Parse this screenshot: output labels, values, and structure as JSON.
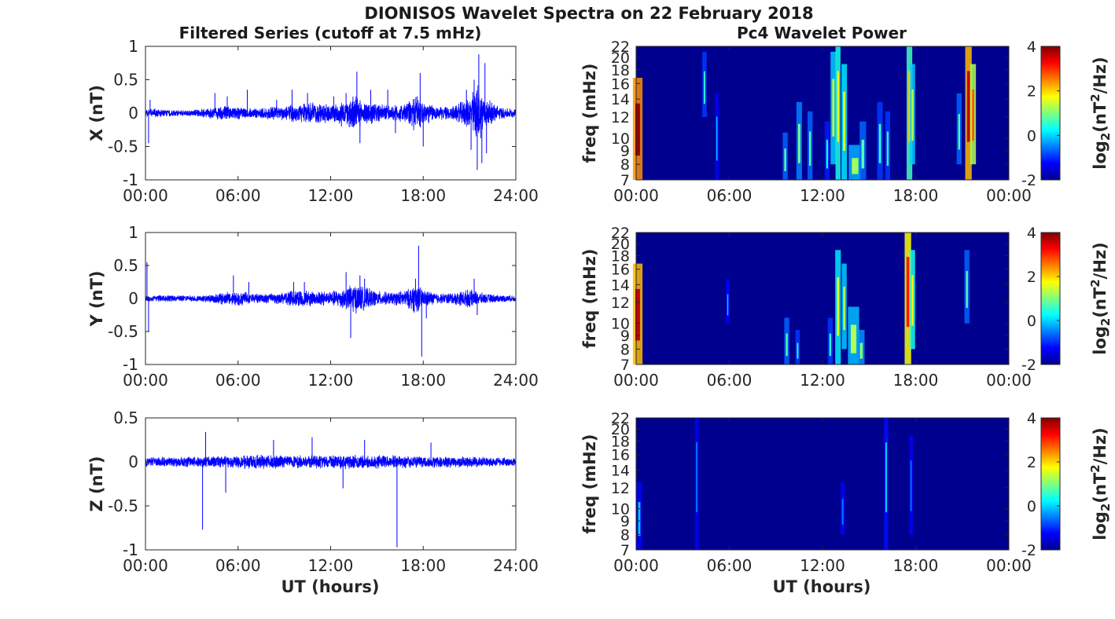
{
  "figure": {
    "title": "DIONISOS Wavelet Spectra on 22 February 2018",
    "left_column_title": "Filtered Series (cutoff at 7.5 mHz)",
    "right_column_title": "Pc4 Wavelet Power",
    "x_axis_label": "UT (hours)"
  },
  "colors": {
    "series_line": "#0000ff",
    "background_power": "#00008f",
    "colormap": "jet"
  },
  "chart_data": [
    {
      "type": "line",
      "panel": "X",
      "ylabel": "X (nT)",
      "ylim": [
        -1,
        1
      ],
      "yticks": [
        "1",
        "0.5",
        "0",
        "-0.5",
        "-1"
      ],
      "ytick_values": [
        1,
        0.5,
        0,
        -0.5,
        -1
      ],
      "xlim": [
        0,
        24
      ],
      "xticks": [
        "00:00",
        "06:00",
        "12:00",
        "18:00",
        "24:00"
      ],
      "envelope": [
        [
          0,
          0.05
        ],
        [
          0.5,
          0.08
        ],
        [
          1,
          0.06
        ],
        [
          2,
          0.05
        ],
        [
          3,
          0.05
        ],
        [
          4,
          0.08
        ],
        [
          5,
          0.12
        ],
        [
          6,
          0.1
        ],
        [
          7,
          0.08
        ],
        [
          8,
          0.1
        ],
        [
          9,
          0.12
        ],
        [
          10,
          0.15
        ],
        [
          11,
          0.18
        ],
        [
          12,
          0.15
        ],
        [
          13,
          0.2
        ],
        [
          13.5,
          0.3
        ],
        [
          14,
          0.2
        ],
        [
          15,
          0.15
        ],
        [
          16,
          0.12
        ],
        [
          17,
          0.18
        ],
        [
          17.5,
          0.3
        ],
        [
          18,
          0.2
        ],
        [
          19,
          0.1
        ],
        [
          20,
          0.12
        ],
        [
          21,
          0.25
        ],
        [
          21.5,
          0.5
        ],
        [
          22,
          0.25
        ],
        [
          23,
          0.1
        ],
        [
          24,
          0.06
        ]
      ],
      "spikes": [
        [
          0.2,
          -0.45
        ],
        [
          0.3,
          0.2
        ],
        [
          4.5,
          0.3
        ],
        [
          5.3,
          0.25
        ],
        [
          6.6,
          0.35
        ],
        [
          8.5,
          0.2
        ],
        [
          9.5,
          0.35
        ],
        [
          10.5,
          0.3
        ],
        [
          12.2,
          0.25
        ],
        [
          12.7,
          -0.2
        ],
        [
          13,
          0.3
        ],
        [
          13.2,
          -0.2
        ],
        [
          13.7,
          0.62
        ],
        [
          13.9,
          -0.45
        ],
        [
          14.6,
          0.35
        ],
        [
          15.7,
          0.35
        ],
        [
          16.2,
          -0.3
        ],
        [
          17.6,
          0.25
        ],
        [
          17.8,
          0.6
        ],
        [
          18,
          -0.5
        ],
        [
          20.8,
          0.35
        ],
        [
          21.1,
          -0.55
        ],
        [
          21.3,
          0.5
        ],
        [
          21.5,
          -0.85
        ],
        [
          21.6,
          0.88
        ],
        [
          21.8,
          -0.75
        ],
        [
          22,
          0.75
        ],
        [
          22.1,
          -0.6
        ]
      ]
    },
    {
      "type": "line",
      "panel": "Y",
      "ylabel": "Y (nT)",
      "ylim": [
        -1,
        1
      ],
      "yticks": [
        "1",
        "0.5",
        "0",
        "-0.5",
        "-1"
      ],
      "ytick_values": [
        1,
        0.5,
        0,
        -0.5,
        -1
      ],
      "xlim": [
        0,
        24
      ],
      "xticks": [
        "00:00",
        "06:00",
        "12:00",
        "18:00",
        "24:00"
      ],
      "envelope": [
        [
          0,
          0.05
        ],
        [
          1,
          0.06
        ],
        [
          2,
          0.05
        ],
        [
          3,
          0.05
        ],
        [
          4,
          0.06
        ],
        [
          5,
          0.1
        ],
        [
          6,
          0.12
        ],
        [
          7,
          0.08
        ],
        [
          8,
          0.08
        ],
        [
          9,
          0.1
        ],
        [
          10,
          0.15
        ],
        [
          11,
          0.12
        ],
        [
          12,
          0.12
        ],
        [
          13,
          0.18
        ],
        [
          13.5,
          0.25
        ],
        [
          14,
          0.2
        ],
        [
          15,
          0.12
        ],
        [
          16,
          0.1
        ],
        [
          17,
          0.15
        ],
        [
          17.5,
          0.25
        ],
        [
          18,
          0.15
        ],
        [
          19,
          0.08
        ],
        [
          20,
          0.1
        ],
        [
          21,
          0.15
        ],
        [
          22,
          0.08
        ],
        [
          23,
          0.06
        ],
        [
          24,
          0.05
        ]
      ],
      "spikes": [
        [
          0.1,
          0.55
        ],
        [
          0.2,
          -0.5
        ],
        [
          5.7,
          0.35
        ],
        [
          6.7,
          0.25
        ],
        [
          9.6,
          0.25
        ],
        [
          10.3,
          0.25
        ],
        [
          13,
          0.4
        ],
        [
          13.3,
          -0.6
        ],
        [
          13.9,
          0.35
        ],
        [
          14.2,
          0.3
        ],
        [
          17.5,
          0.3
        ],
        [
          17.7,
          0.8
        ],
        [
          17.9,
          -0.88
        ],
        [
          18.2,
          -0.3
        ],
        [
          21.3,
          0.3
        ],
        [
          21.5,
          -0.25
        ]
      ]
    },
    {
      "type": "line",
      "panel": "Z",
      "ylabel": "Z (nT)",
      "ylim": [
        -1,
        0.5
      ],
      "yticks": [
        "0.5",
        "0",
        "-0.5",
        "-1"
      ],
      "ytick_values": [
        0.5,
        0,
        -0.5,
        -1
      ],
      "xlim": [
        0,
        24
      ],
      "xticks": [
        "00:00",
        "06:00",
        "12:00",
        "18:00",
        "24:00"
      ],
      "envelope": [
        [
          0,
          0.06
        ],
        [
          2,
          0.06
        ],
        [
          4,
          0.07
        ],
        [
          6,
          0.08
        ],
        [
          8,
          0.09
        ],
        [
          10,
          0.08
        ],
        [
          12,
          0.08
        ],
        [
          14,
          0.09
        ],
        [
          16,
          0.08
        ],
        [
          18,
          0.07
        ],
        [
          20,
          0.07
        ],
        [
          22,
          0.06
        ],
        [
          24,
          0.05
        ]
      ],
      "spikes": [
        [
          3.7,
          -0.77
        ],
        [
          3.9,
          0.34
        ],
        [
          5.2,
          -0.35
        ],
        [
          8.3,
          0.25
        ],
        [
          10.8,
          0.28
        ],
        [
          12.8,
          -0.3
        ],
        [
          14.2,
          0.25
        ],
        [
          16.3,
          -0.97
        ],
        [
          18.5,
          0.22
        ]
      ]
    },
    {
      "type": "heatmap",
      "panel": "X",
      "ylabel": "freq (mHz)",
      "yticks": [
        "22",
        "20",
        "18",
        "16",
        "14",
        "12",
        "10",
        "9",
        "8",
        "7"
      ],
      "ytick_values": [
        22,
        20,
        18,
        16,
        14,
        12,
        10,
        9,
        8,
        7
      ],
      "ylim": [
        7,
        22
      ],
      "y_scale": "log",
      "xlim": [
        0,
        24
      ],
      "xticks": [
        "00:00",
        "06:00",
        "12:00",
        "18:00",
        "00:00"
      ],
      "colorbar_label": "log2(nT^2/Hz)",
      "colorbar_ticks": [
        "4",
        "2",
        "0",
        "-2"
      ],
      "clim": [
        -2,
        4
      ],
      "events": [
        [
          0.1,
          0.25,
          7,
          16,
          3.8
        ],
        [
          4.4,
          0.08,
          12,
          20,
          0.0
        ],
        [
          5.2,
          0.06,
          7,
          14,
          -0.5
        ],
        [
          9.6,
          0.1,
          7,
          10,
          0.3
        ],
        [
          10.5,
          0.12,
          7,
          13,
          0.5
        ],
        [
          11.2,
          0.1,
          7,
          12,
          0.3
        ],
        [
          12.3,
          0.1,
          7,
          11,
          -0.2
        ],
        [
          12.7,
          0.12,
          8,
          20,
          1.0
        ],
        [
          13,
          0.1,
          7,
          22,
          1.5
        ],
        [
          13.4,
          0.12,
          7,
          18,
          1.2
        ],
        [
          14.1,
          0.35,
          7,
          9,
          0.8
        ],
        [
          14.6,
          0.15,
          7,
          11,
          0.3
        ],
        [
          15.7,
          0.12,
          7,
          13,
          0.0
        ],
        [
          16.2,
          0.1,
          7,
          12,
          0.0
        ],
        [
          17.6,
          0.12,
          7,
          22,
          1.8
        ],
        [
          17.8,
          0.1,
          8,
          18,
          1.0
        ],
        [
          20.8,
          0.1,
          8,
          14,
          0.3
        ],
        [
          21.4,
          0.15,
          7,
          22,
          3.5
        ],
        [
          21.7,
          0.12,
          8,
          18,
          2.5
        ]
      ]
    },
    {
      "type": "heatmap",
      "panel": "Y",
      "ylabel": "freq (mHz)",
      "yticks": [
        "22",
        "20",
        "18",
        "16",
        "14",
        "12",
        "10",
        "9",
        "8",
        "7"
      ],
      "ytick_values": [
        22,
        20,
        18,
        16,
        14,
        12,
        10,
        9,
        8,
        7
      ],
      "ylim": [
        7,
        22
      ],
      "y_scale": "log",
      "xlim": [
        0,
        24
      ],
      "xticks": [
        "00:00",
        "06:00",
        "12:00",
        "18:00",
        "00:00"
      ],
      "colorbar_label": "log2(nT^2/Hz)",
      "colorbar_ticks": [
        "4",
        "2",
        "0",
        "-2"
      ],
      "clim": [
        -2,
        4
      ],
      "events": [
        [
          0.1,
          0.25,
          7,
          16,
          3.5
        ],
        [
          5.9,
          0.06,
          10,
          14,
          -0.5
        ],
        [
          9.7,
          0.1,
          7,
          10,
          0.3
        ],
        [
          10.4,
          0.08,
          7,
          9,
          0.0
        ],
        [
          12.5,
          0.1,
          7,
          10,
          0.0
        ],
        [
          13,
          0.12,
          7,
          18,
          1.2
        ],
        [
          13.4,
          0.1,
          8,
          16,
          1.0
        ],
        [
          14,
          0.3,
          7,
          11,
          0.9
        ],
        [
          14.5,
          0.15,
          7,
          9,
          0.6
        ],
        [
          17.5,
          0.15,
          7,
          22,
          3.0
        ],
        [
          17.8,
          0.1,
          8,
          18,
          1.5
        ],
        [
          21.3,
          0.1,
          10,
          18,
          0.3
        ]
      ]
    },
    {
      "type": "heatmap",
      "panel": "Z",
      "ylabel": "freq (mHz)",
      "yticks": [
        "22",
        "20",
        "18",
        "16",
        "14",
        "12",
        "10",
        "9",
        "8",
        "7"
      ],
      "ytick_values": [
        22,
        20,
        18,
        16,
        14,
        12,
        10,
        9,
        8,
        7
      ],
      "ylim": [
        7,
        22
      ],
      "y_scale": "log",
      "xlim": [
        0,
        24
      ],
      "xticks": [
        "00:00",
        "06:00",
        "12:00",
        "18:00",
        "00:00"
      ],
      "colorbar_label": "log2(nT^2/Hz)",
      "colorbar_ticks": [
        "4",
        "2",
        "0",
        "-2"
      ],
      "clim": [
        -2,
        4
      ],
      "events": [
        [
          0.2,
          0.12,
          7,
          12,
          -0.6
        ],
        [
          3.9,
          0.06,
          7,
          22,
          -0.9
        ],
        [
          13.3,
          0.08,
          8,
          12,
          -1.1
        ],
        [
          16.1,
          0.07,
          7,
          22,
          -0.3
        ],
        [
          17.7,
          0.06,
          8,
          18,
          -1.0
        ]
      ]
    }
  ]
}
